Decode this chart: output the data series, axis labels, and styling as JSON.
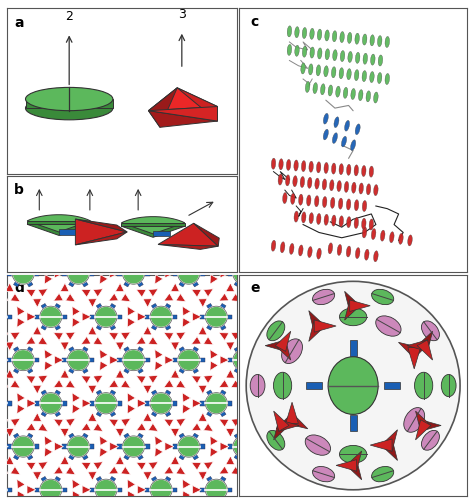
{
  "background_color": "#ffffff",
  "green_color": "#5cb85c",
  "red_color": "#cc2222",
  "blue_color": "#1a5fb4",
  "pink_color": "#cc88bb",
  "gray_color": "#888888",
  "dark_green": "#3a8a3a",
  "dark_red": "#881111",
  "label_a": "a",
  "label_b": "b",
  "label_c": "c",
  "label_d": "d",
  "label_e": "e",
  "sym2_label": "2",
  "sym3_label": "3"
}
